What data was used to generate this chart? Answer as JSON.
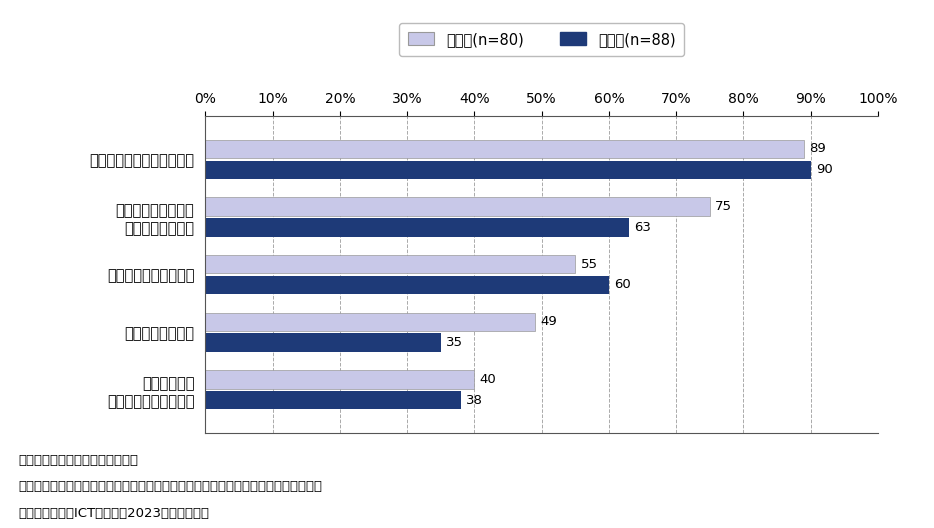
{
  "categories": [
    "閲覧内容のフィルタリング",
    "コンテンツの購入、\nダウンロード制限",
    "端末の利用時間の制限",
    "家族の所在地確認",
    "アプリごとの\n利用時間の確認・制限"
  ],
  "elementary_values": [
    89,
    75,
    55,
    49,
    40
  ],
  "junior_high_values": [
    90,
    63,
    60,
    35,
    38
  ],
  "elementary_color": "#c8c8e8",
  "junior_high_color": "#1e3a78",
  "elementary_label": "小学生(n=80)",
  "junior_high_label": "中学生(n=88)",
  "xlim": [
    0,
    100
  ],
  "xticks": [
    0,
    10,
    20,
    30,
    40,
    50,
    60,
    70,
    80,
    90,
    100
  ],
  "note1": "注１：小中学生の保護者が回答。",
  "note2": "注２：専用のスマホを所有し、ペアレンタルコントロールを実施している人が対象。",
  "note3": "出典：小中学生ICT利用調査2023（訪問留置）",
  "background_color": "#ffffff",
  "bar_height": 0.32,
  "bar_gap": 0.04,
  "value_fontsize": 9.5,
  "label_fontsize": 10.5,
  "note_fontsize": 9.5,
  "legend_fontsize": 10.5,
  "tick_fontsize": 10
}
